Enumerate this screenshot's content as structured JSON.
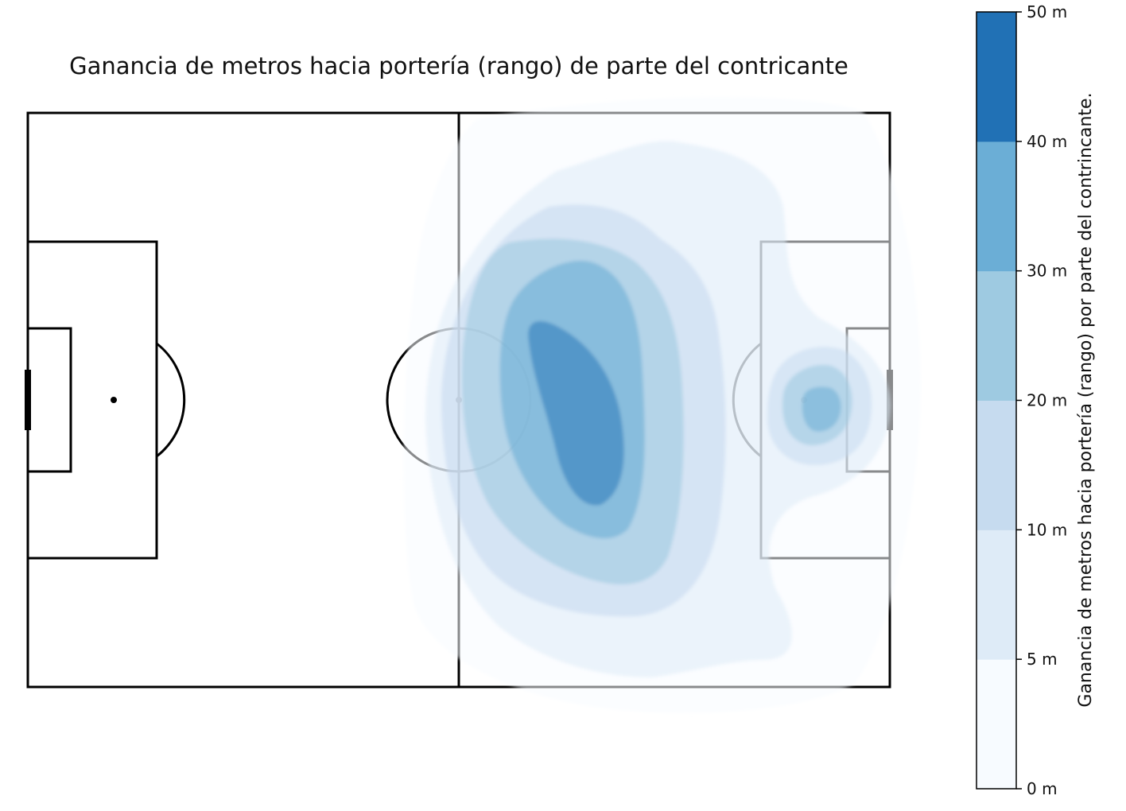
{
  "chart_data": {
    "type": "heatmap",
    "title": "Ganancia de metros hacia portería (rango) de parte del contricante",
    "colorbar": {
      "label": "Ganancia de metros hacia portería (rango) por parte del contrincante.",
      "levels": [
        0,
        5,
        10,
        20,
        30,
        40,
        50
      ],
      "tick_labels": [
        "0 m",
        "5 m",
        "10 m",
        "20 m",
        "30 m",
        "40 m",
        "50 m"
      ],
      "colors": [
        "#f7fbff",
        "#deebf7",
        "#c6dbef",
        "#9ecae1",
        "#6baed6",
        "#2171b5"
      ]
    },
    "pitch": {
      "lines_color": "#000000",
      "background": "#ffffff"
    }
  }
}
